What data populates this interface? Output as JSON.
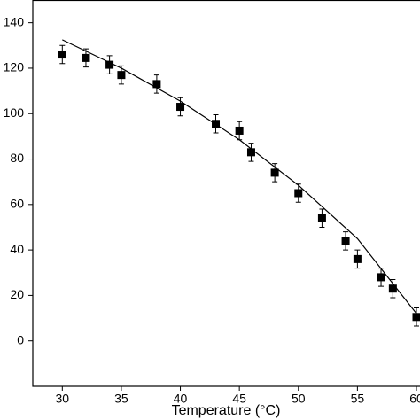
{
  "chart_data": {
    "type": "scatter",
    "x_label": "Temperature (°C)",
    "xlim": [
      27.5,
      60.3
    ],
    "ylim": [
      -20,
      150
    ],
    "xticks": [
      30,
      35,
      40,
      45,
      50,
      55,
      60
    ],
    "yticks": [
      0,
      20,
      40,
      60,
      80,
      100,
      120,
      140
    ],
    "series": [
      {
        "kind": "points",
        "color": "#000000",
        "x": [
          30,
          32,
          34,
          35,
          38,
          40,
          43,
          45,
          46,
          48,
          50,
          52,
          54,
          55,
          57,
          58,
          60
        ],
        "values": [
          126,
          124.5,
          121.5,
          117,
          113,
          103,
          95.5,
          92.5,
          83,
          74,
          65,
          54,
          44,
          36,
          28,
          23,
          10.5
        ],
        "errors": [
          4,
          4,
          4,
          4,
          4,
          4,
          4,
          4,
          4,
          4,
          4,
          4,
          4,
          4,
          4,
          4,
          4
        ]
      },
      {
        "kind": "fit",
        "color": "#000000",
        "x": [
          30,
          35,
          40,
          45,
          50,
          55,
          60
        ],
        "values": [
          132.5,
          120,
          105.5,
          88.5,
          68.5,
          45,
          12
        ]
      }
    ]
  }
}
